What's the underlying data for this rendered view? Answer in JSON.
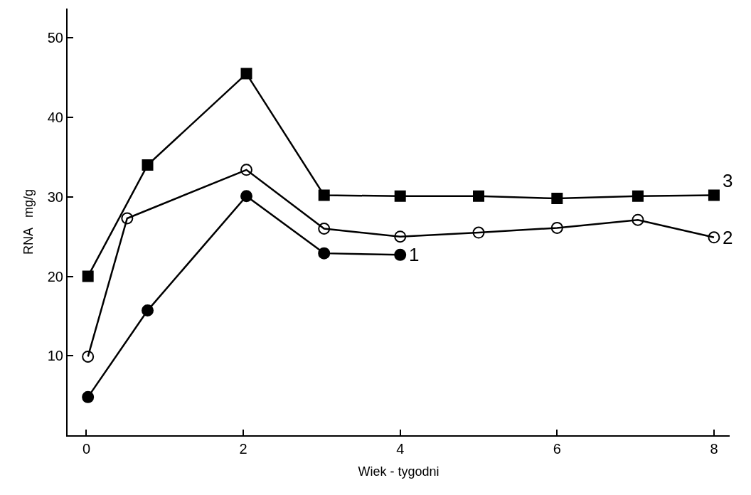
{
  "chart_data": {
    "type": "line",
    "xlabel": "Wiek - tygodni",
    "ylabel": "RNA   mg/g",
    "xlim": [
      -0.24,
      8.2
    ],
    "xticks": [
      0,
      2,
      4,
      6,
      8
    ],
    "ylim": [
      0,
      53.7
    ],
    "yticks": [
      10,
      20,
      30,
      40,
      50
    ],
    "legend": false,
    "series": [
      {
        "name": "1",
        "color": "#000000",
        "marker": "circle",
        "x": [
          0.02,
          0.78,
          2.04,
          3.03,
          4.0
        ],
        "values": [
          4.8,
          15.7,
          30.1,
          22.9,
          22.7
        ]
      },
      {
        "name": "2",
        "color": "#000000",
        "marker": "circle-open",
        "x": [
          0.02,
          0.52,
          2.04,
          3.03,
          4.0,
          5.0,
          6.0,
          7.03,
          8.0
        ],
        "values": [
          9.9,
          27.3,
          33.4,
          26,
          25,
          25.5,
          26.1,
          27.1,
          24.9
        ]
      },
      {
        "name": "3",
        "color": "#000000",
        "marker": "square",
        "x": [
          0.02,
          0.78,
          2.04,
          3.03,
          4.0,
          5.0,
          6.0,
          7.03,
          8.0
        ],
        "values": [
          20,
          34,
          45.5,
          30.2,
          30.1,
          30.1,
          29.8,
          30.1,
          30.2
        ]
      }
    ]
  }
}
